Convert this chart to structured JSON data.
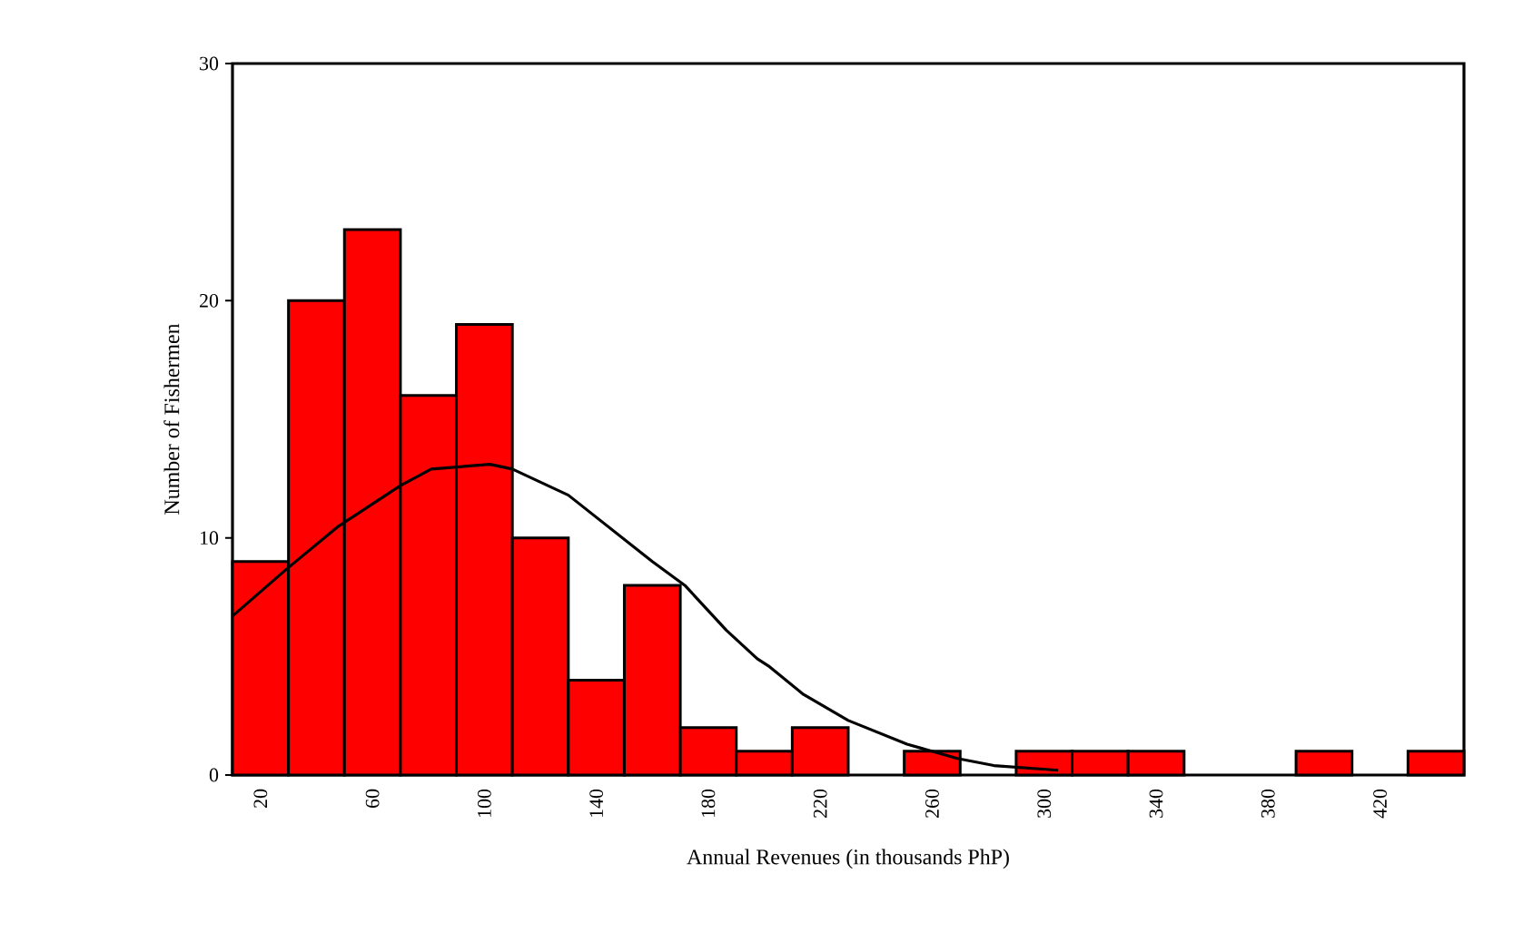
{
  "chart_data": {
    "type": "histogram",
    "xlabel": "Annual Revenues (in thousands PhP)",
    "ylabel": "Number of Fishermen",
    "bins": [
      10,
      30,
      50,
      70,
      90,
      110,
      130,
      150,
      170,
      190,
      210,
      230,
      250,
      270,
      290,
      310,
      330,
      350,
      370,
      390,
      410,
      430,
      450
    ],
    "values": [
      9,
      20,
      23,
      16,
      19,
      10,
      4,
      8,
      2,
      1,
      2,
      0,
      1,
      0,
      1,
      1,
      1,
      0,
      0,
      1,
      0,
      1
    ],
    "color": "#ff0000",
    "xlim": [
      10,
      450
    ],
    "ylim": [
      0,
      30
    ],
    "xticks": [
      20,
      60,
      100,
      140,
      180,
      220,
      260,
      300,
      340,
      380,
      420
    ],
    "yticks": [
      0,
      10,
      20,
      30
    ],
    "series": [
      {
        "type": "line",
        "color": "#000000",
        "x": [
          10,
          29.5,
          48,
          70,
          81,
          102,
          110,
          130,
          160,
          171.6,
          186.5,
          197.5,
          201.5,
          214,
          230,
          251,
          269,
          282,
          305
        ],
        "values": [
          6.7,
          8.7,
          10.5,
          12.2,
          12.9,
          13.1,
          12.9,
          11.8,
          9.0,
          8.0,
          6.1,
          4.9,
          4.6,
          3.4,
          2.3,
          1.3,
          0.7,
          0.4,
          0.2
        ]
      }
    ]
  }
}
